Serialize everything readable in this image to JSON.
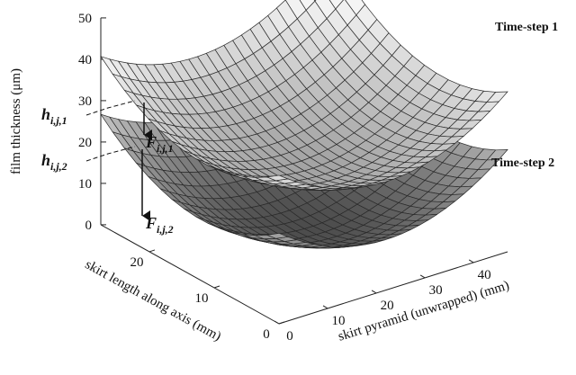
{
  "chart_data": {
    "type": "surface",
    "zlabel": "film thickness (μm)",
    "ylabel": "skirt length along axis (mm)",
    "xlabel": "skirt pyramid (unwrapped) (mm)",
    "xlim": [
      0,
      47
    ],
    "ylim": [
      0,
      27.5
    ],
    "zlim": [
      0,
      50
    ],
    "xticks": [
      0,
      10,
      20,
      30,
      40
    ],
    "yticks": [
      0,
      10,
      20
    ],
    "zticks": [
      0,
      10,
      20,
      30,
      40,
      50
    ],
    "surfaces": [
      {
        "label": "Time-step 1"
      },
      {
        "label": "Time-step 2"
      }
    ],
    "annotations": [
      {
        "symbol": "h",
        "subscript": "i,j,1"
      },
      {
        "symbol": "h",
        "subscript": "i,j,2"
      },
      {
        "symbol": "F",
        "subscript": "i,j,1"
      },
      {
        "symbol": "F",
        "subscript": "i,j,2"
      }
    ]
  }
}
